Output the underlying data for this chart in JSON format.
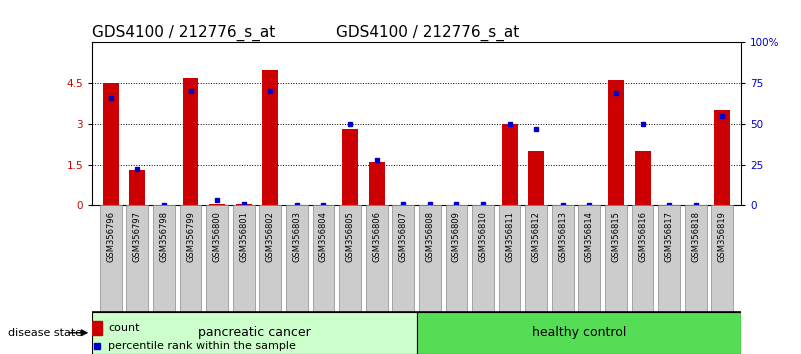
{
  "title": "GDS4100 / 212776_s_at",
  "samples": [
    "GSM356796",
    "GSM356797",
    "GSM356798",
    "GSM356799",
    "GSM356800",
    "GSM356801",
    "GSM356802",
    "GSM356803",
    "GSM356804",
    "GSM356805",
    "GSM356806",
    "GSM356807",
    "GSM356808",
    "GSM356809",
    "GSM356810",
    "GSM356811",
    "GSM356812",
    "GSM356813",
    "GSM356814",
    "GSM356815",
    "GSM356816",
    "GSM356817",
    "GSM356818",
    "GSM356819"
  ],
  "counts": [
    4.5,
    1.3,
    0.0,
    4.7,
    0.05,
    0.05,
    5.0,
    0.0,
    0.0,
    2.8,
    1.6,
    0.0,
    0.0,
    0.0,
    0.0,
    3.0,
    2.0,
    0.0,
    0.0,
    4.6,
    2.0,
    0.0,
    0.0,
    3.5
  ],
  "percentiles": [
    66,
    22,
    0,
    70,
    3,
    1,
    70,
    0,
    0,
    50,
    28,
    1,
    1,
    1,
    1,
    50,
    47,
    0,
    0,
    69,
    50,
    0,
    0,
    55
  ],
  "n_pancreatic": 12,
  "n_total": 24,
  "ylim_left": [
    0,
    6
  ],
  "ylim_right": [
    0,
    100
  ],
  "yticks_left": [
    0,
    1.5,
    3.0,
    4.5
  ],
  "ytick_labels_left": [
    "0",
    "1.5",
    "3",
    "4.5"
  ],
  "yticks_right": [
    0,
    25,
    50,
    75,
    100
  ],
  "ytick_labels_right": [
    "0",
    "25",
    "50",
    "75",
    "100%"
  ],
  "bar_color": "#cc0000",
  "dot_color": "#0000cc",
  "pancreatic_bg": "#ccffcc",
  "healthy_bg": "#55dd55",
  "xtick_bg": "#cccccc",
  "grid_color": "#000000",
  "legend_count_color": "#cc0000",
  "legend_pct_color": "#0000cc",
  "title_fontsize": 11,
  "tick_fontsize": 7.5,
  "band_fontsize": 9,
  "legend_fontsize": 8
}
